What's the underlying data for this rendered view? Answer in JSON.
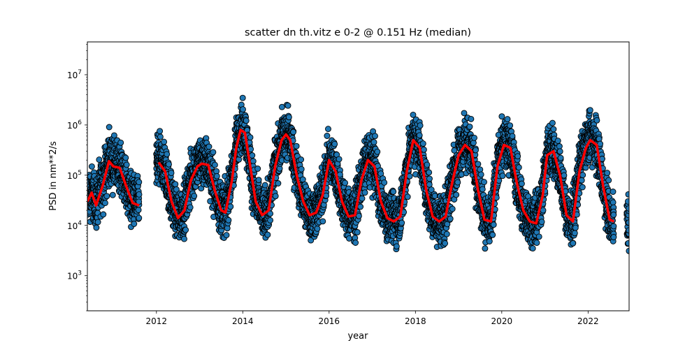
{
  "chart_data": {
    "type": "scatter",
    "title": "scatter dn th.vitz e 0-2 @ 0.151 Hz (median)",
    "xlabel": "year",
    "ylabel": "PSD in nm**2/s",
    "xlim": [
      2010.4,
      2022.95
    ],
    "ylim": [
      200,
      45000000
    ],
    "yscale": "log",
    "xticks": [
      2012,
      2014,
      2016,
      2018,
      2020,
      2022
    ],
    "xtick_labels": [
      "2012",
      "2014",
      "2016",
      "2018",
      "2020",
      "2022"
    ],
    "yticks": [
      1000,
      10000,
      100000,
      1000000,
      10000000
    ],
    "ytick_labels": [
      {
        "base": "10",
        "exp": "3"
      },
      {
        "base": "10",
        "exp": "4"
      },
      {
        "base": "10",
        "exp": "5"
      },
      {
        "base": "10",
        "exp": "6"
      },
      {
        "base": "10",
        "exp": "7"
      }
    ],
    "grid": false,
    "colors": {
      "scatter_fill": "#1f77b4",
      "scatter_edge": "#000000",
      "median_line": "#ff0000"
    },
    "scatter_segments": [
      {
        "start": 2010.4,
        "end": 2011.6
      },
      {
        "start": 2012.0,
        "end": 2022.6
      },
      {
        "start": 2022.9,
        "end": 2022.95
      }
    ],
    "scatter_envelope": {
      "low_factor": 0.2,
      "high_factor": 6.0
    },
    "series": [
      {
        "type": "line",
        "x": [
          2010.4,
          2010.5,
          2010.6,
          2010.75,
          2010.9,
          2011.0,
          2011.15,
          2011.3,
          2011.45,
          2011.6,
          2012.05,
          2012.2,
          2012.35,
          2012.5,
          2012.65,
          2012.8,
          2012.95,
          2013.05,
          2013.2,
          2013.35,
          2013.5,
          2013.6,
          2013.75,
          2013.85,
          2013.95,
          2014.05,
          2014.15,
          2014.3,
          2014.45,
          2014.6,
          2014.75,
          2014.9,
          2015.0,
          2015.1,
          2015.25,
          2015.4,
          2015.55,
          2015.7,
          2015.85,
          2016.0,
          2016.15,
          2016.3,
          2016.45,
          2016.6,
          2016.75,
          2016.9,
          2017.05,
          2017.2,
          2017.35,
          2017.5,
          2017.65,
          2017.8,
          2017.95,
          2018.1,
          2018.25,
          2018.4,
          2018.55,
          2018.7,
          2018.85,
          2019.0,
          2019.15,
          2019.3,
          2019.45,
          2019.6,
          2019.75,
          2019.9,
          2020.05,
          2020.2,
          2020.35,
          2020.5,
          2020.65,
          2020.8,
          2020.95,
          2021.05,
          2021.2,
          2021.35,
          2021.5,
          2021.65,
          2021.8,
          2021.95,
          2022.05,
          2022.2,
          2022.35,
          2022.5,
          2022.6
        ],
        "y": [
          30000,
          45000,
          25000,
          60000,
          190000,
          150000,
          140000,
          60000,
          28000,
          25000,
          180000,
          120000,
          30000,
          14000,
          20000,
          80000,
          150000,
          170000,
          160000,
          50000,
          20000,
          18000,
          80000,
          350000,
          800000,
          700000,
          200000,
          30000,
          16000,
          20000,
          150000,
          500000,
          650000,
          500000,
          100000,
          30000,
          16000,
          18000,
          40000,
          200000,
          120000,
          30000,
          15000,
          16000,
          80000,
          200000,
          150000,
          30000,
          14000,
          12000,
          15000,
          120000,
          500000,
          350000,
          50000,
          15000,
          12000,
          15000,
          70000,
          250000,
          400000,
          300000,
          50000,
          13000,
          12000,
          150000,
          400000,
          350000,
          70000,
          20000,
          12000,
          11000,
          40000,
          250000,
          300000,
          100000,
          16000,
          12000,
          120000,
          350000,
          500000,
          400000,
          60000,
          13000,
          12000
        ]
      }
    ]
  }
}
